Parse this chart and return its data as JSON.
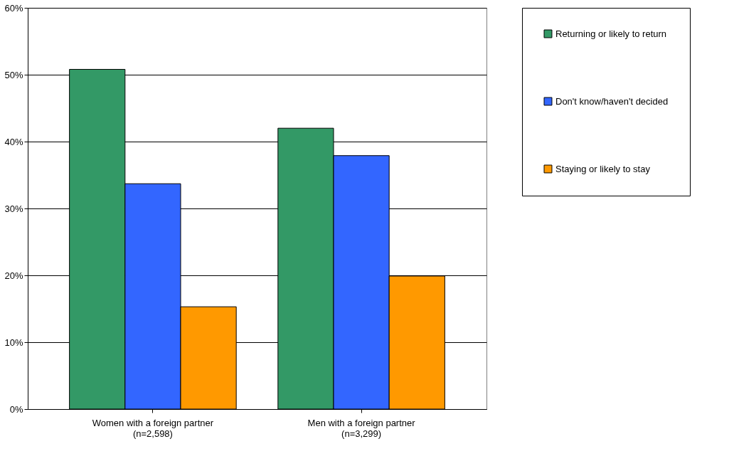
{
  "chart_data": {
    "type": "bar",
    "categories": [
      "Women with a foreign partner\n(n=2,598)",
      "Men with a foreign partner\n(n=3,299)"
    ],
    "series": [
      {
        "name": "Returning or likely to return",
        "color": "#339966",
        "values": [
          50.8,
          42.0
        ]
      },
      {
        "name": "Don't know/haven't decided",
        "color": "#3366ff",
        "values": [
          33.7,
          37.9
        ]
      },
      {
        "name": "Staying or likely to stay",
        "color": "#ff9900",
        "values": [
          15.3,
          19.9
        ]
      }
    ],
    "ylim": [
      0,
      60
    ],
    "yticks": [
      {
        "value": 0,
        "label": "0%"
      },
      {
        "value": 10,
        "label": "10%"
      },
      {
        "value": 20,
        "label": "20%"
      },
      {
        "value": 30,
        "label": "30%"
      },
      {
        "value": 40,
        "label": "40%"
      },
      {
        "value": 50,
        "label": "50%"
      },
      {
        "value": 60,
        "label": "60%"
      }
    ],
    "grid": "y",
    "legend": "right"
  }
}
